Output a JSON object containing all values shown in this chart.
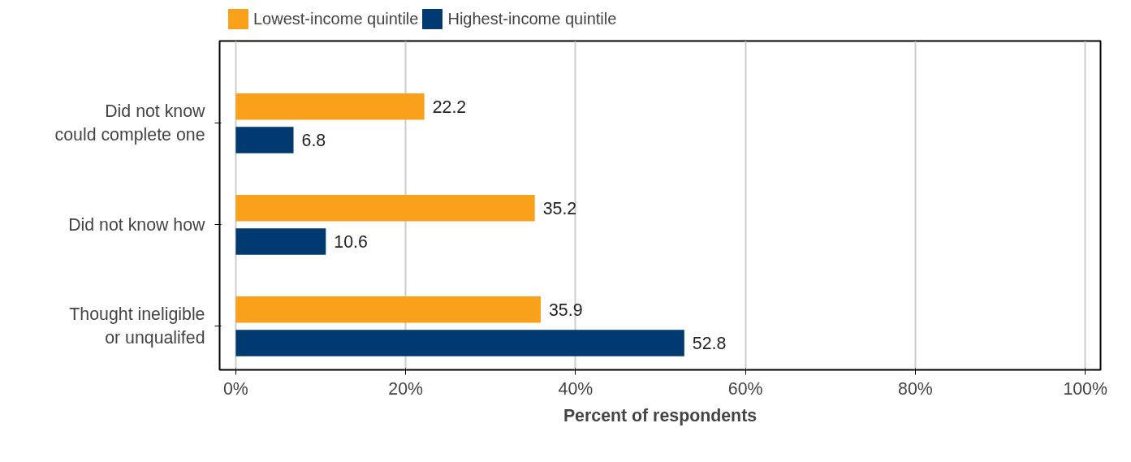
{
  "chart_data": {
    "type": "bar",
    "orientation": "horizontal",
    "xlabel": "Percent of respondents",
    "categories": [
      "Did not know\ncould complete one",
      "Did not know how",
      "Thought ineligible\nor unqualifed"
    ],
    "series": [
      {
        "name": "Lowest-income quintile",
        "color": "#f9a11b",
        "values": [
          22.2,
          35.2,
          35.9
        ]
      },
      {
        "name": "Highest-income quintile",
        "color": "#003a70",
        "values": [
          6.8,
          10.6,
          52.8
        ]
      }
    ],
    "xlim": [
      -1.9,
      101.8
    ],
    "xticks": [
      {
        "value": 0,
        "label": "0%"
      },
      {
        "value": 20,
        "label": "20%"
      },
      {
        "value": 40,
        "label": "40%"
      },
      {
        "value": 60,
        "label": "60%"
      },
      {
        "value": 80,
        "label": "80%"
      },
      {
        "value": 100,
        "label": "100%"
      }
    ],
    "grid": "x",
    "legend": "top left",
    "data_labels": true
  }
}
